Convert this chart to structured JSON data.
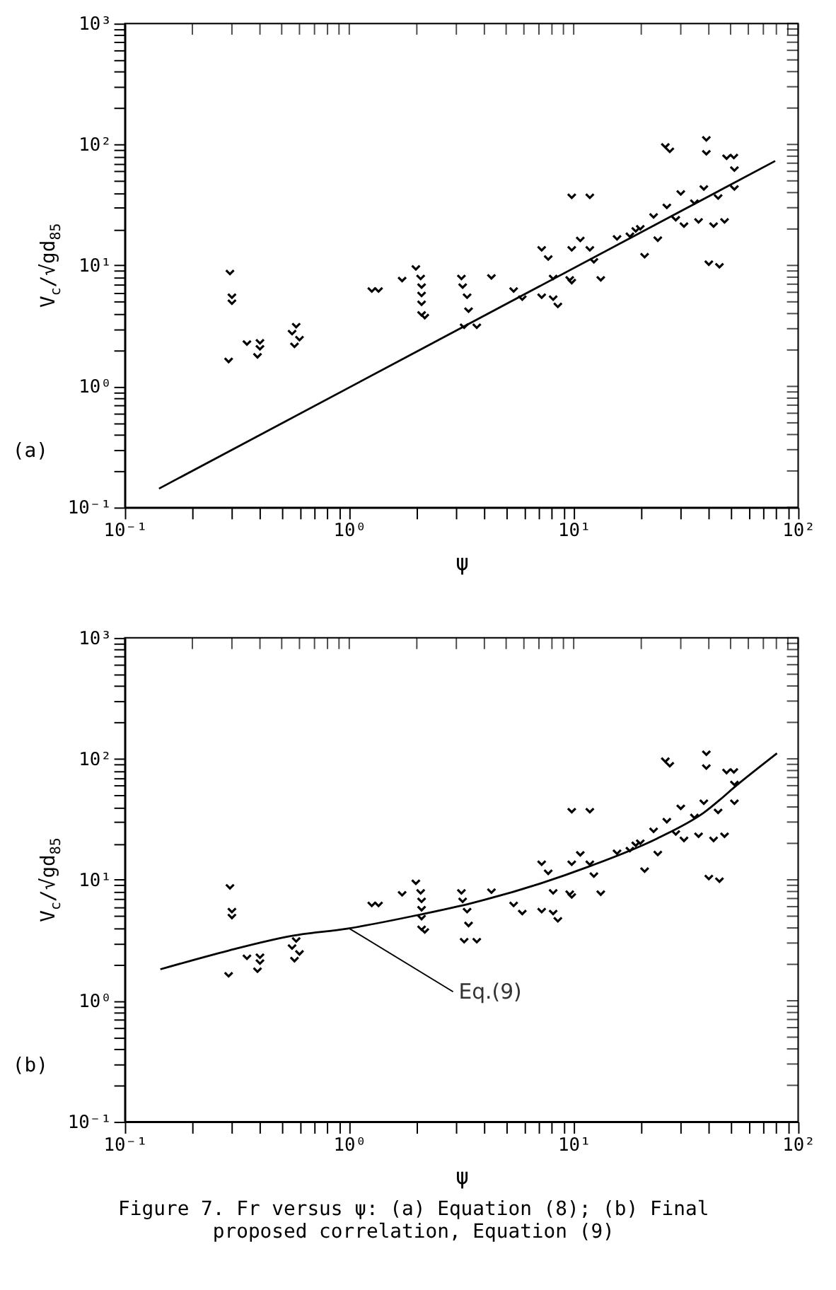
{
  "chart_data": [
    {
      "type": "scatter",
      "ylabel": "V$_{c}$/√gd$_{85}$",
      "xlabel": "ψ",
      "log": "xy",
      "grid": false,
      "xlim": [
        0.1,
        100
      ],
      "ylim": [
        0.1,
        1000
      ],
      "xticks": [
        {
          "value": 0.1,
          "label": "10⁻¹"
        },
        {
          "value": 0.2,
          "label": null
        },
        {
          "value": 0.3,
          "label": null
        },
        {
          "value": 0.4,
          "label": null
        },
        {
          "value": 0.5,
          "label": null
        },
        {
          "value": 0.6,
          "label": null
        },
        {
          "value": 0.7,
          "label": null
        },
        {
          "value": 0.8,
          "label": null
        },
        {
          "value": 0.9,
          "label": null
        },
        {
          "value": 1,
          "label": "10⁰"
        },
        {
          "value": 2,
          "label": null
        },
        {
          "value": 3,
          "label": null
        },
        {
          "value": 4,
          "label": null
        },
        {
          "value": 5,
          "label": null
        },
        {
          "value": 6,
          "label": null
        },
        {
          "value": 7,
          "label": null
        },
        {
          "value": 8,
          "label": null
        },
        {
          "value": 9,
          "label": null
        },
        {
          "value": 10,
          "label": "10¹"
        },
        {
          "value": 20,
          "label": null
        },
        {
          "value": 30,
          "label": null
        },
        {
          "value": 40,
          "label": null
        },
        {
          "value": 50,
          "label": null
        },
        {
          "value": 60,
          "label": null
        },
        {
          "value": 70,
          "label": null
        },
        {
          "value": 80,
          "label": null
        },
        {
          "value": 90,
          "label": null
        },
        {
          "value": 100,
          "label": "10²"
        }
      ],
      "yticks": [
        {
          "value": 0.1,
          "label": "10⁻¹"
        },
        {
          "value": 0.2,
          "label": null
        },
        {
          "value": 0.3,
          "label": null
        },
        {
          "value": 0.4,
          "label": null
        },
        {
          "value": 0.5,
          "label": null
        },
        {
          "value": 0.6,
          "label": null
        },
        {
          "value": 0.7,
          "label": null
        },
        {
          "value": 0.8,
          "label": null
        },
        {
          "value": 0.9,
          "label": null
        },
        {
          "value": 1,
          "label": "10⁰"
        },
        {
          "value": 2,
          "label": null
        },
        {
          "value": 3,
          "label": null
        },
        {
          "value": 4,
          "label": null
        },
        {
          "value": 5,
          "label": null
        },
        {
          "value": 6,
          "label": null
        },
        {
          "value": 7,
          "label": null
        },
        {
          "value": 8,
          "label": null
        },
        {
          "value": 9,
          "label": null
        },
        {
          "value": 10,
          "label": "10¹"
        },
        {
          "value": 20,
          "label": null
        },
        {
          "value": 30,
          "label": null
        },
        {
          "value": 40,
          "label": null
        },
        {
          "value": 50,
          "label": null
        },
        {
          "value": 60,
          "label": null
        },
        {
          "value": 70,
          "label": null
        },
        {
          "value": 80,
          "label": null
        },
        {
          "value": 90,
          "label": null
        },
        {
          "value": 100,
          "label": "10²"
        },
        {
          "value": 200,
          "label": null
        },
        {
          "value": 300,
          "label": null
        },
        {
          "value": 400,
          "label": null
        },
        {
          "value": 500,
          "label": null
        },
        {
          "value": 600,
          "label": null
        },
        {
          "value": 700,
          "label": null
        },
        {
          "value": 800,
          "label": null
        },
        {
          "value": 900,
          "label": null
        },
        {
          "value": 1000,
          "label": "10³"
        }
      ],
      "annotations": [
        "(a)"
      ],
      "series": [
        {
          "type": "scatter",
          "color": "#000000",
          "x": [
            0.294,
            0.3,
            0.3,
            0.29,
            0.35,
            0.4,
            0.4,
            0.39,
            0.556,
            0.58,
            0.6,
            0.57,
            1.26,
            1.35,
            1.72,
            1.98,
            2.08,
            2.1,
            2.1,
            2.1,
            2.1,
            2.17,
            3.16,
            3.2,
            3.35,
            3.4,
            3.25,
            3.7,
            4.3,
            5.4,
            5.9,
            7.2,
            7.7,
            7.2,
            8.1,
            8.1,
            8.5,
            9.8,
            11.8,
            9.6,
            9.8,
            10.7,
            11.8,
            12.3,
            13.2,
            15.6,
            17.8,
            20.7,
            19.8,
            22.7,
            25.6,
            26.8,
            39,
            39,
            26,
            28.5,
            30,
            34.5,
            38,
            36,
            40,
            44.6,
            48,
            51.7,
            52,
            44,
            47,
            42,
            52,
            31,
            23.7,
            9.8,
            18.9
          ],
          "values": [
            8.8,
            5.6,
            5.0,
            1.65,
            2.3,
            2.35,
            2.1,
            1.8,
            2.8,
            3.2,
            2.5,
            2.2,
            6.3,
            6.3,
            7.7,
            9.6,
            8.0,
            6.8,
            5.8,
            4.9,
            4.0,
            3.8,
            8.0,
            6.8,
            5.6,
            4.3,
            3.16,
            3.16,
            8.1,
            6.3,
            5.4,
            13.8,
            11.6,
            5.6,
            8.0,
            5.4,
            4.7,
            37.5,
            37.5,
            7.8,
            13.8,
            16.5,
            13.8,
            11,
            7.8,
            17,
            17.9,
            12.1,
            20.6,
            25.8,
            98,
            90,
            112,
            86,
            31,
            24.5,
            40,
            33.6,
            44,
            23.5,
            10.5,
            10,
            79,
            80,
            63,
            37,
            23.5,
            21.7,
            44,
            21.7,
            16.6,
            7.4,
            19.8
          ]
        },
        {
          "type": "line",
          "color": "#000000",
          "x": [
            0.142,
            79
          ],
          "values": [
            0.143,
            73
          ]
        }
      ]
    },
    {
      "type": "scatter",
      "ylabel": "V$_{c}$/√gd$_{85}$",
      "xlabel": "ψ",
      "log": "xy",
      "grid": false,
      "xlim": [
        0.1,
        100
      ],
      "ylim": [
        0.1,
        1000
      ],
      "xticks": [
        {
          "value": 0.1,
          "label": "10⁻¹"
        },
        {
          "value": 0.2,
          "label": null
        },
        {
          "value": 0.3,
          "label": null
        },
        {
          "value": 0.4,
          "label": null
        },
        {
          "value": 0.5,
          "label": null
        },
        {
          "value": 0.6,
          "label": null
        },
        {
          "value": 0.7,
          "label": null
        },
        {
          "value": 0.8,
          "label": null
        },
        {
          "value": 0.9,
          "label": null
        },
        {
          "value": 1,
          "label": "10⁰"
        },
        {
          "value": 2,
          "label": null
        },
        {
          "value": 3,
          "label": null
        },
        {
          "value": 4,
          "label": null
        },
        {
          "value": 5,
          "label": null
        },
        {
          "value": 6,
          "label": null
        },
        {
          "value": 7,
          "label": null
        },
        {
          "value": 8,
          "label": null
        },
        {
          "value": 9,
          "label": null
        },
        {
          "value": 10,
          "label": "10¹"
        },
        {
          "value": 20,
          "label": null
        },
        {
          "value": 30,
          "label": null
        },
        {
          "value": 40,
          "label": null
        },
        {
          "value": 50,
          "label": null
        },
        {
          "value": 60,
          "label": null
        },
        {
          "value": 70,
          "label": null
        },
        {
          "value": 80,
          "label": null
        },
        {
          "value": 90,
          "label": null
        },
        {
          "value": 100,
          "label": "10²"
        }
      ],
      "yticks": [
        {
          "value": 0.1,
          "label": "10⁻¹"
        },
        {
          "value": 0.2,
          "label": null
        },
        {
          "value": 0.3,
          "label": null
        },
        {
          "value": 0.4,
          "label": null
        },
        {
          "value": 0.5,
          "label": null
        },
        {
          "value": 0.6,
          "label": null
        },
        {
          "value": 0.7,
          "label": null
        },
        {
          "value": 0.8,
          "label": null
        },
        {
          "value": 0.9,
          "label": null
        },
        {
          "value": 1,
          "label": "10⁰"
        },
        {
          "value": 2,
          "label": null
        },
        {
          "value": 3,
          "label": null
        },
        {
          "value": 4,
          "label": null
        },
        {
          "value": 5,
          "label": null
        },
        {
          "value": 6,
          "label": null
        },
        {
          "value": 7,
          "label": null
        },
        {
          "value": 8,
          "label": null
        },
        {
          "value": 9,
          "label": null
        },
        {
          "value": 10,
          "label": "10¹"
        },
        {
          "value": 20,
          "label": null
        },
        {
          "value": 30,
          "label": null
        },
        {
          "value": 40,
          "label": null
        },
        {
          "value": 50,
          "label": null
        },
        {
          "value": 60,
          "label": null
        },
        {
          "value": 70,
          "label": null
        },
        {
          "value": 80,
          "label": null
        },
        {
          "value": 90,
          "label": null
        },
        {
          "value": 100,
          "label": "10²"
        },
        {
          "value": 200,
          "label": null
        },
        {
          "value": 300,
          "label": null
        },
        {
          "value": 400,
          "label": null
        },
        {
          "value": 500,
          "label": null
        },
        {
          "value": 600,
          "label": null
        },
        {
          "value": 700,
          "label": null
        },
        {
          "value": 800,
          "label": null
        },
        {
          "value": 900,
          "label": null
        },
        {
          "value": 1000,
          "label": "10³"
        }
      ],
      "annotations": [
        "(b)",
        {
          "text": "Eq.(9)",
          "x": 1.0,
          "y": 3.96
        },
        "Figure 7.  Fr versus ψ: (a) Equation (8); (b) Final proposed correlation, Equation (9)"
      ],
      "series": [
        {
          "type": "scatter",
          "color": "#000000",
          "x": [
            0.294,
            0.3,
            0.3,
            0.29,
            0.35,
            0.4,
            0.4,
            0.39,
            0.556,
            0.58,
            0.6,
            0.57,
            1.26,
            1.35,
            1.72,
            1.98,
            2.08,
            2.1,
            2.1,
            2.1,
            2.1,
            2.17,
            3.16,
            3.2,
            3.35,
            3.4,
            3.25,
            3.7,
            4.3,
            5.4,
            5.9,
            7.2,
            7.7,
            7.2,
            8.1,
            8.1,
            8.5,
            9.8,
            11.8,
            9.6,
            9.8,
            10.7,
            11.8,
            12.3,
            13.2,
            15.6,
            17.8,
            20.7,
            19.8,
            22.7,
            25.6,
            26.8,
            39,
            39,
            26,
            28.5,
            30,
            34.5,
            38,
            36,
            40,
            44.6,
            48,
            51.7,
            52,
            44,
            47,
            42,
            52,
            31,
            23.7,
            9.8,
            18.9
          ],
          "values": [
            8.8,
            5.6,
            5.0,
            1.65,
            2.3,
            2.35,
            2.1,
            1.8,
            2.8,
            3.2,
            2.5,
            2.2,
            6.3,
            6.3,
            7.7,
            9.6,
            8.0,
            6.8,
            5.8,
            4.9,
            4.0,
            3.8,
            8.0,
            6.8,
            5.6,
            4.3,
            3.16,
            3.16,
            8.1,
            6.3,
            5.4,
            13.8,
            11.6,
            5.6,
            8.0,
            5.4,
            4.7,
            37.5,
            37.5,
            7.8,
            13.8,
            16.5,
            13.8,
            11,
            7.8,
            17,
            17.9,
            12.1,
            20.6,
            25.8,
            98,
            90,
            112,
            86,
            31,
            24.5,
            40,
            33.6,
            44,
            23.5,
            10.5,
            10,
            79,
            80,
            63,
            37,
            23.5,
            21.7,
            44,
            21.7,
            16.6,
            7.4,
            19.8
          ]
        },
        {
          "type": "line",
          "color": "#000000",
          "x": [
            0.144,
            0.29,
            0.536,
            0.99,
            2.01,
            3.55,
            7.2,
            11.6,
            23.5,
            37.8,
            55,
            80.5
          ],
          "values": [
            1.82,
            2.6,
            3.4,
            3.96,
            5.1,
            6.45,
            9.4,
            12.8,
            21.9,
            35.6,
            63.5,
            111
          ]
        }
      ]
    }
  ]
}
